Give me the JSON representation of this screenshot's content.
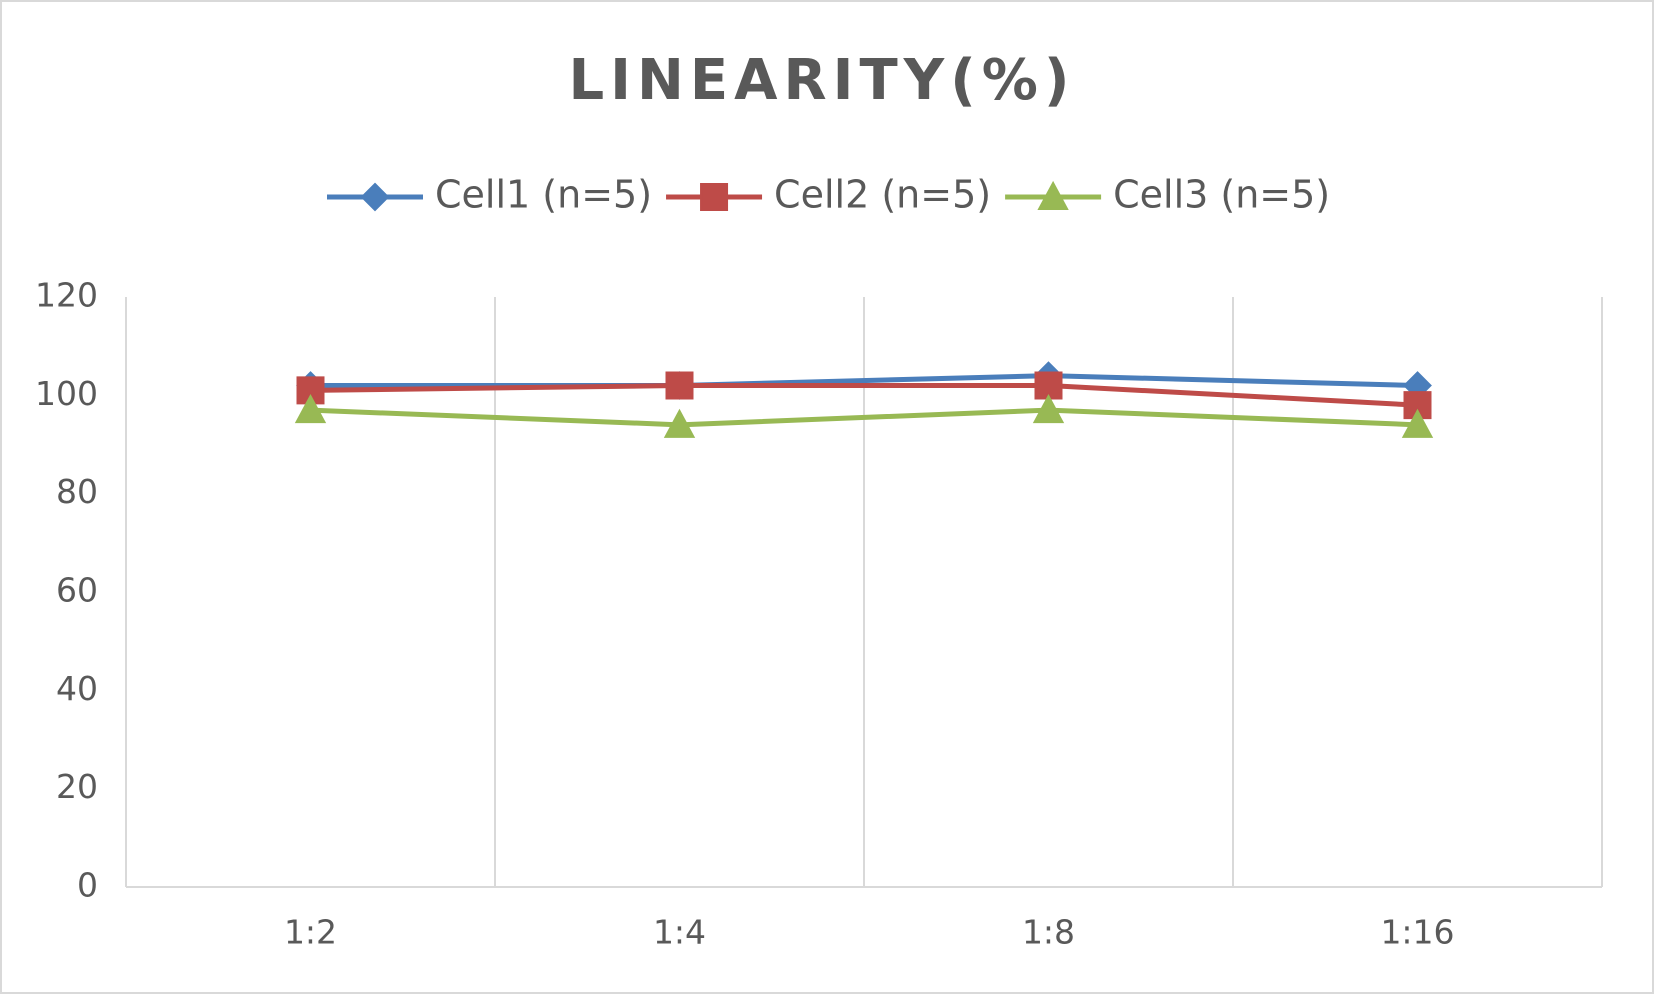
{
  "chart_data": {
    "type": "line",
    "title": "LINEARITY(%)",
    "categories": [
      "1:2",
      "1:4",
      "1:8",
      "1:16"
    ],
    "series": [
      {
        "name": "Cell1 (n=5)",
        "color": "#4a7ebb",
        "marker": "diamond",
        "values": [
          102,
          102,
          104,
          102
        ]
      },
      {
        "name": "Cell2 (n=5)",
        "color": "#be4b48",
        "marker": "square",
        "values": [
          101,
          102,
          102,
          98
        ]
      },
      {
        "name": "Cell3 (n=5)",
        "color": "#98b954",
        "marker": "triangle",
        "values": [
          97,
          94,
          97,
          94
        ]
      }
    ],
    "ylim": [
      0,
      120
    ],
    "yticks": [
      0,
      20,
      40,
      60,
      80,
      100,
      120
    ],
    "grid": "x",
    "legend": "top"
  }
}
